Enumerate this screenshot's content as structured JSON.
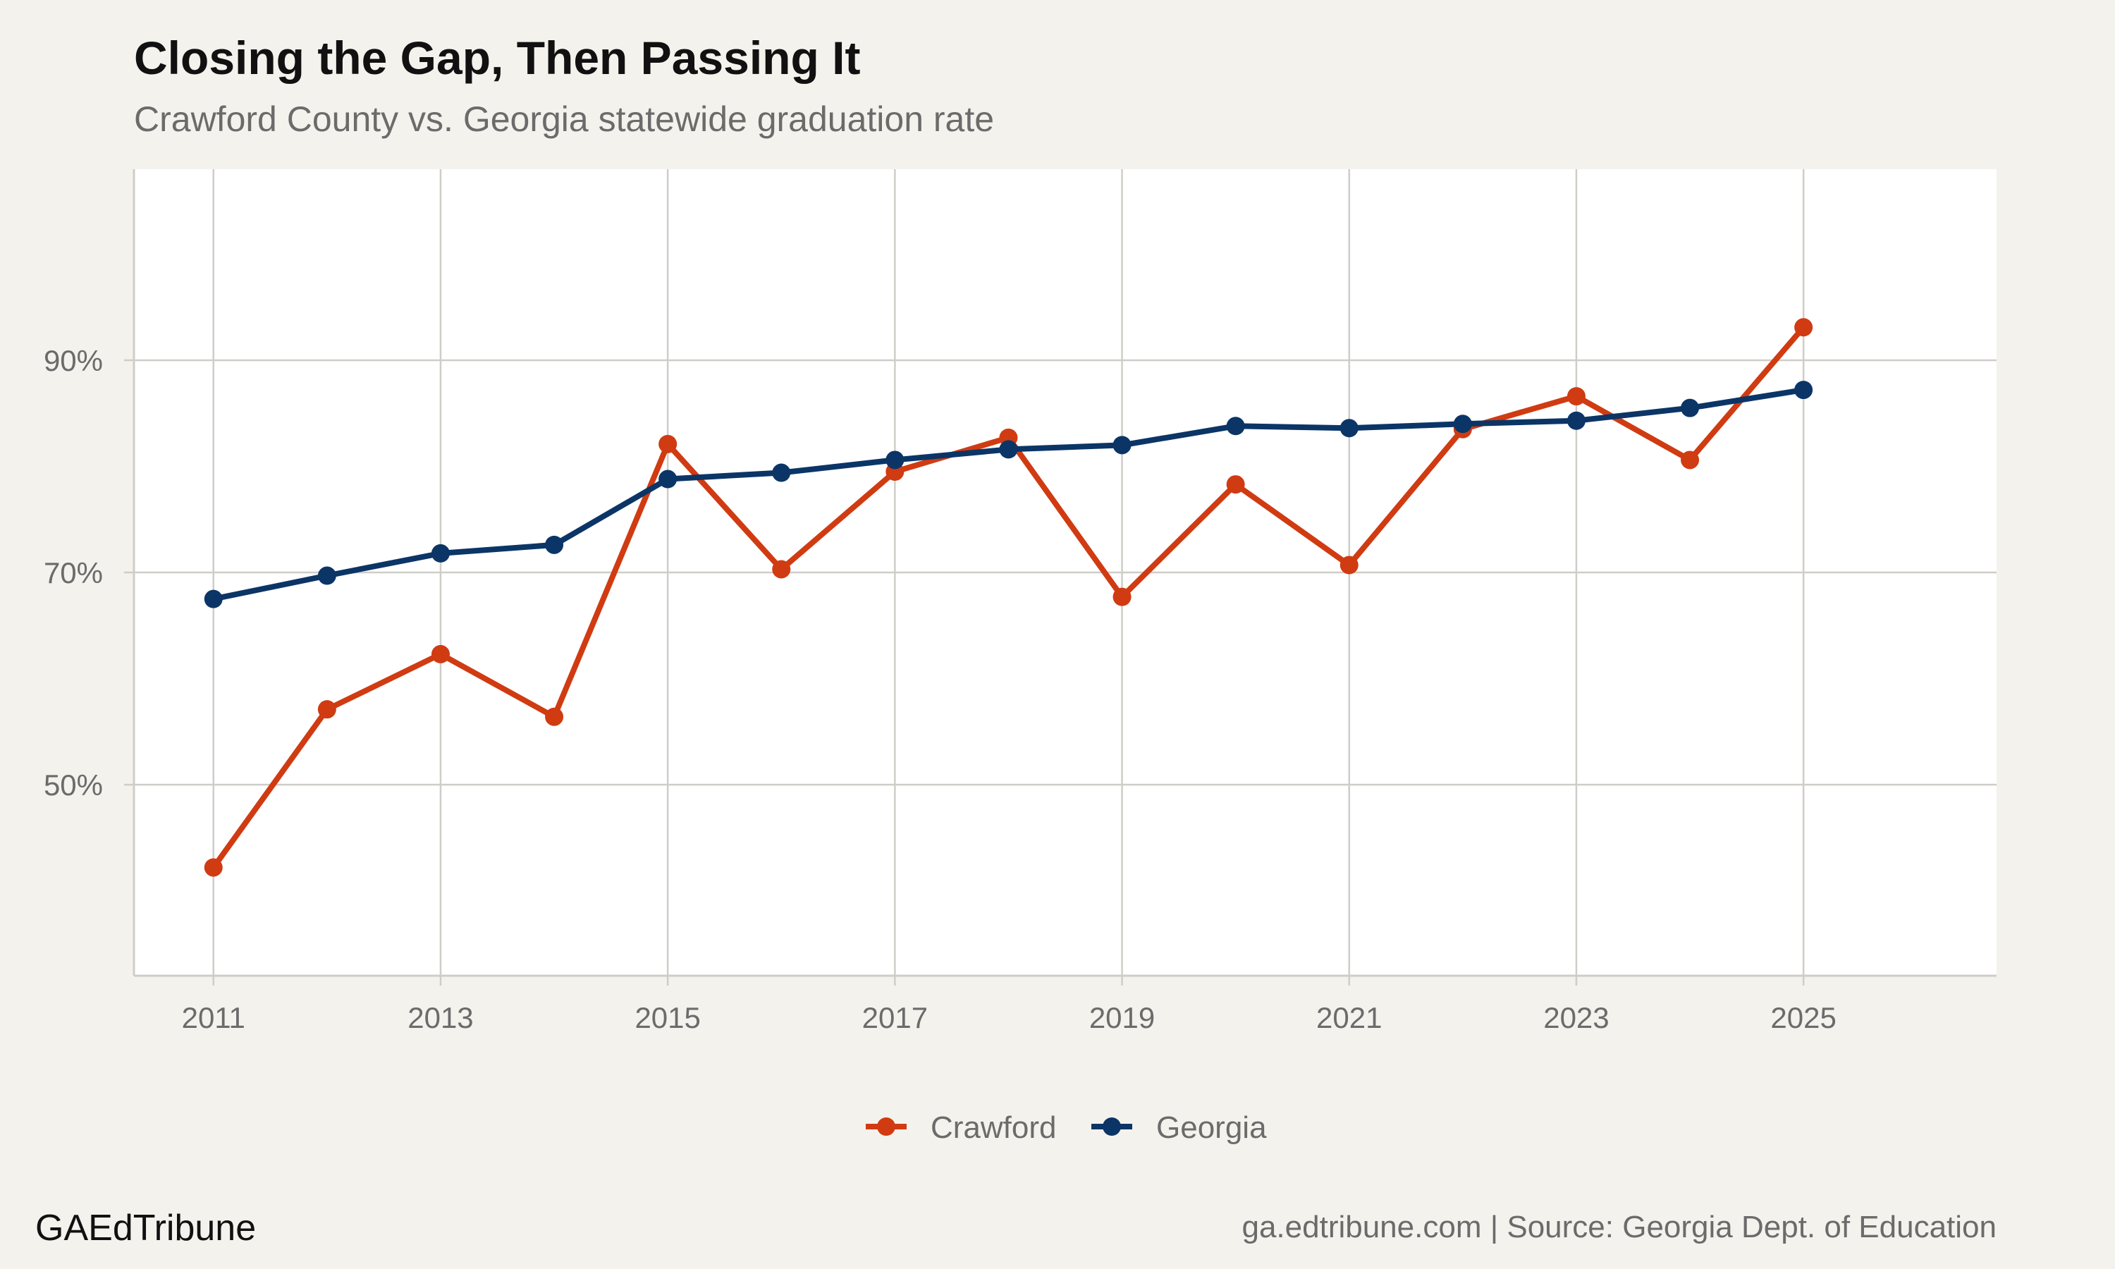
{
  "header": {
    "title": "Closing the Gap, Then Passing It",
    "subtitle": "Crawford County vs. Georgia statewide graduation rate"
  },
  "footer": {
    "brand": "GAEdTribune",
    "source": "ga.edtribune.com | Source: Georgia Dept. of Education"
  },
  "colors": {
    "background": "#f4f2ed",
    "panel": "#ffffff",
    "grid": "#cfcdc8",
    "crawford": "#d03b12",
    "georgia": "#0b3566"
  },
  "chart_data": {
    "type": "line",
    "title": "Closing the Gap, Then Passing It",
    "subtitle": "Crawford County vs. Georgia statewide graduation rate",
    "xlabel": "",
    "ylabel": "",
    "x": [
      2011,
      2012,
      2013,
      2014,
      2015,
      2016,
      2017,
      2018,
      2019,
      2020,
      2021,
      2022,
      2023,
      2024,
      2025
    ],
    "x_ticks": [
      2011,
      2013,
      2015,
      2017,
      2019,
      2021,
      2023,
      2025
    ],
    "y_ticks": [
      50,
      70,
      90
    ],
    "y_tick_labels": [
      "50%",
      "70%",
      "90%"
    ],
    "xlim": [
      2010.3,
      2026.7
    ],
    "ylim": [
      32,
      108
    ],
    "grid": true,
    "legend": "bottom-center",
    "series": [
      {
        "name": "Crawford",
        "color": "#d03b12",
        "values": [
          42.2,
          57.1,
          62.3,
          56.4,
          82.1,
          70.3,
          79.5,
          82.7,
          67.7,
          78.3,
          70.7,
          83.5,
          86.6,
          80.6,
          93.1
        ]
      },
      {
        "name": "Georgia",
        "color": "#0b3566",
        "values": [
          67.5,
          69.7,
          71.8,
          72.6,
          78.8,
          79.4,
          80.6,
          81.6,
          82.0,
          83.8,
          83.6,
          84.0,
          84.3,
          85.5,
          87.2
        ]
      }
    ]
  }
}
